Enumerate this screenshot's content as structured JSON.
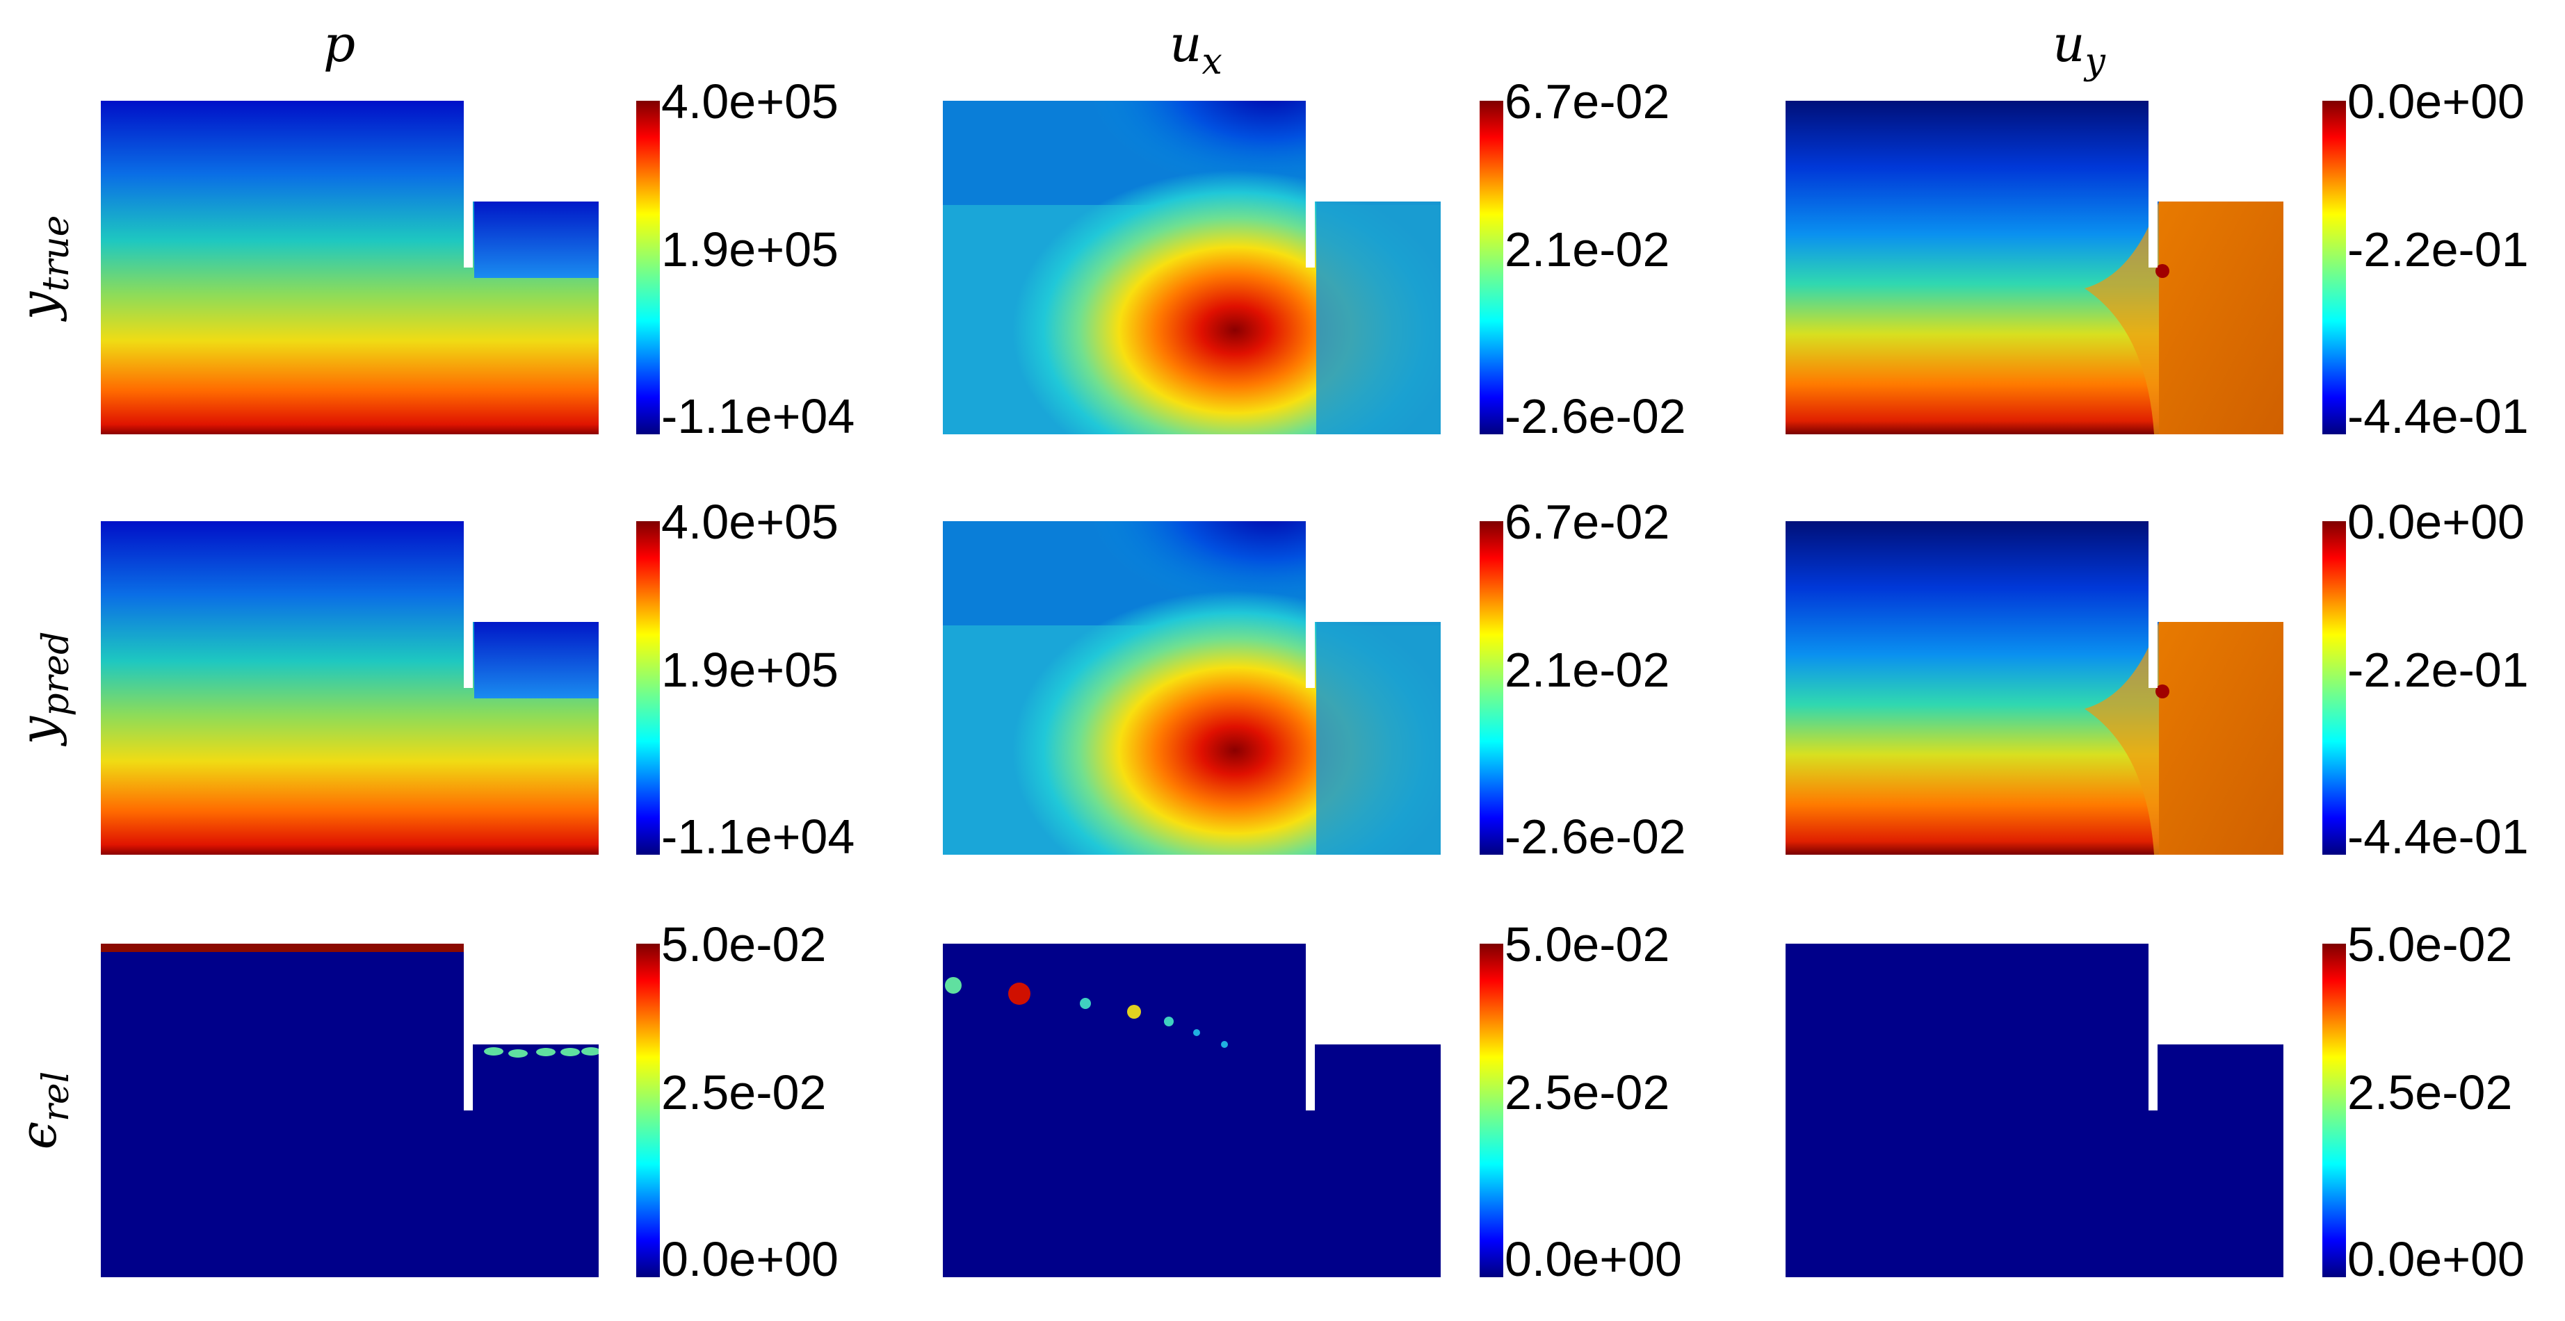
{
  "columns": [
    {
      "symbol": "p",
      "sub": ""
    },
    {
      "symbol": "u",
      "sub": "x"
    },
    {
      "symbol": "u",
      "sub": "y"
    }
  ],
  "rows": [
    {
      "symbol": "y",
      "sub": "true"
    },
    {
      "symbol": "y",
      "sub": "pred"
    },
    {
      "symbol": "ϵ",
      "sub": "rel"
    }
  ],
  "colorbars": [
    [
      "4.0e+05",
      "1.9e+05",
      "-1.1e+04"
    ],
    [
      "6.7e-02",
      "2.1e-02",
      "-2.6e-02"
    ],
    [
      "0.0e+00",
      "-2.2e-01",
      "-4.4e-01"
    ],
    [
      "4.0e+05",
      "1.9e+05",
      "-1.1e+04"
    ],
    [
      "6.7e-02",
      "2.1e-02",
      "-2.6e-02"
    ],
    [
      "0.0e+00",
      "-2.2e-01",
      "-4.4e-01"
    ],
    [
      "5.0e-02",
      "2.5e-02",
      "0.0e+00"
    ],
    [
      "5.0e-02",
      "2.5e-02",
      "0.0e+00"
    ],
    [
      "5.0e-02",
      "2.5e-02",
      "0.0e+00"
    ]
  ],
  "colormap": [
    "#00007f",
    "#0000ff",
    "#007fff",
    "#00ffff",
    "#7fff7f",
    "#ffff00",
    "#ff7f00",
    "#ff0000",
    "#7f0000"
  ]
}
